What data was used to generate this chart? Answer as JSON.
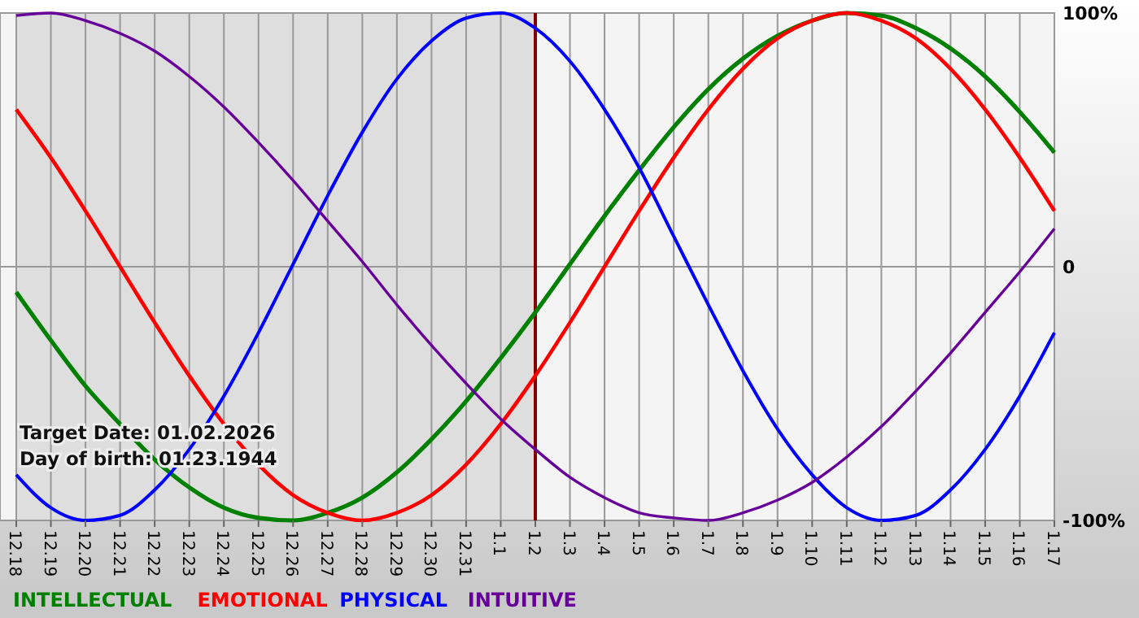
{
  "chart_data": {
    "type": "line",
    "categories": [
      "12.18",
      "12.19",
      "12.20",
      "12.21",
      "12.22",
      "12.23",
      "12.24",
      "12.25",
      "12.26",
      "12.27",
      "12.28",
      "12.29",
      "12.30",
      "12.31",
      "1.1",
      "1.2",
      "1.3",
      "1.4",
      "1.5",
      "1.6",
      "1.7",
      "1.8",
      "1.9",
      "1.10",
      "1.11",
      "1.12",
      "1.13",
      "1.14",
      "1.15",
      "1.16",
      "1.17"
    ],
    "series": [
      {
        "name": "INTELLECTUAL",
        "color": "#008000",
        "values": [
          -10,
          -29,
          -47,
          -62,
          -76,
          -87,
          -95,
          -99,
          -100,
          -97,
          -91,
          -81,
          -68,
          -53,
          -36,
          -18,
          1,
          20,
          38,
          55,
          70,
          82,
          91,
          97,
          100,
          99,
          94,
          86,
          75,
          61,
          45
        ]
      },
      {
        "name": "EMOTIONAL",
        "color": "#ff0000",
        "values": [
          62,
          43,
          22,
          0,
          -22,
          -43,
          -62,
          -78,
          -90,
          -97,
          -100,
          -97,
          -90,
          -78,
          -62,
          -43,
          -22,
          0,
          22,
          43,
          62,
          78,
          90,
          97,
          100,
          97,
          90,
          78,
          62,
          43,
          22
        ]
      },
      {
        "name": "PHYSICAL",
        "color": "#0000ff",
        "values": [
          -82,
          -95,
          -100,
          -98,
          -88,
          -72,
          -51,
          -26,
          1,
          28,
          53,
          74,
          89,
          98,
          100,
          94,
          81,
          62,
          39,
          12,
          -15,
          -41,
          -64,
          -82,
          -95,
          -100,
          -98,
          -88,
          -72,
          -51,
          -26
        ]
      },
      {
        "name": "INTUITIVE",
        "color": "#660099",
        "values": [
          99,
          100,
          97,
          92,
          85,
          75,
          63,
          49,
          34,
          18,
          2,
          -15,
          -31,
          -46,
          -60,
          -72,
          -83,
          -91,
          -97,
          -99,
          -100,
          -97,
          -92,
          -85,
          -75,
          -63,
          -49,
          -34,
          -18,
          -2,
          15
        ]
      }
    ],
    "ylim": [
      -100,
      100
    ],
    "yticks": [
      {
        "value": 100,
        "label": "100%"
      },
      0,
      {
        "value": -100,
        "label": "-100%"
      }
    ],
    "grid": true,
    "legend": "bottom",
    "ref_lines": [
      {
        "axis": "x",
        "value": "1.2",
        "color": "#800000"
      }
    ],
    "bands": [
      {
        "axis": "x",
        "from": "12.18",
        "to": "1.2",
        "color": "#d8d8d8"
      }
    ],
    "annotations": [
      "Target Date: 01.02.2026",
      "Day of birth: 01.23.1944"
    ]
  }
}
